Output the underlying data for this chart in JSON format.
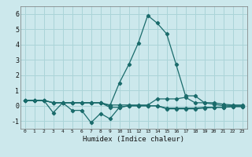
{
  "title": "",
  "xlabel": "Humidex (Indice chaleur)",
  "ylabel": "",
  "bg_color": "#cce8ec",
  "grid_color": "#aad4d8",
  "line_color": "#1a6b6b",
  "xlim": [
    -0.5,
    23.5
  ],
  "ylim": [
    -1.5,
    6.5
  ],
  "xticks": [
    0,
    1,
    2,
    3,
    4,
    5,
    6,
    7,
    8,
    9,
    10,
    11,
    12,
    13,
    14,
    15,
    16,
    17,
    18,
    19,
    20,
    21,
    22,
    23
  ],
  "yticks": [
    -1,
    0,
    1,
    2,
    3,
    4,
    5,
    6
  ],
  "series": [
    {
      "x": [
        0,
        1,
        2,
        3,
        4,
        5,
        6,
        7,
        8,
        9,
        10,
        11,
        12,
        13,
        14,
        15,
        16,
        17,
        18,
        19,
        20,
        21,
        22,
        23
      ],
      "y": [
        0.35,
        0.35,
        0.35,
        0.2,
        0.2,
        0.2,
        0.2,
        0.2,
        0.2,
        0.05,
        0.05,
        0.05,
        0.05,
        0.05,
        0.45,
        0.45,
        0.45,
        0.55,
        0.2,
        0.2,
        0.2,
        0.1,
        0.05,
        0.05
      ]
    },
    {
      "x": [
        0,
        1,
        2,
        3,
        4,
        5,
        6,
        7,
        8,
        9,
        10,
        11,
        12,
        13,
        14,
        15,
        16,
        17,
        18,
        19,
        20,
        21,
        22,
        23
      ],
      "y": [
        0.35,
        0.35,
        0.35,
        -0.45,
        0.2,
        -0.3,
        -0.3,
        -1.1,
        -0.5,
        -0.85,
        -0.1,
        0.0,
        0.0,
        0.0,
        0.0,
        -0.15,
        -0.15,
        -0.15,
        -0.15,
        -0.1,
        -0.1,
        -0.1,
        -0.05,
        -0.05
      ]
    },
    {
      "x": [
        0,
        1,
        2,
        3,
        4,
        5,
        6,
        7,
        8,
        9,
        10,
        11,
        12,
        13,
        14,
        15,
        16,
        17,
        18,
        19,
        20,
        21,
        22,
        23
      ],
      "y": [
        0.35,
        0.35,
        0.35,
        0.2,
        0.2,
        0.2,
        0.2,
        0.2,
        0.2,
        -0.1,
        -0.1,
        0.0,
        0.0,
        0.0,
        0.0,
        -0.2,
        -0.2,
        -0.2,
        -0.2,
        -0.15,
        -0.1,
        -0.1,
        -0.05,
        -0.05
      ]
    },
    {
      "x": [
        0,
        1,
        2,
        3,
        4,
        5,
        6,
        7,
        8,
        9,
        10,
        11,
        12,
        13,
        14,
        15,
        16,
        17,
        18,
        19,
        20,
        21,
        22,
        23
      ],
      "y": [
        0.35,
        0.35,
        0.35,
        0.2,
        0.2,
        0.2,
        0.2,
        0.2,
        0.2,
        0.0,
        1.5,
        2.7,
        4.1,
        5.9,
        5.4,
        4.7,
        2.7,
        0.65,
        0.65,
        0.2,
        0.1,
        0.0,
        0.0,
        0.0
      ]
    }
  ],
  "xlabel_fontsize": 6.5,
  "tick_fontsize_x": 4.5,
  "tick_fontsize_y": 6.0,
  "marker_size": 2.2,
  "linewidth": 0.9
}
